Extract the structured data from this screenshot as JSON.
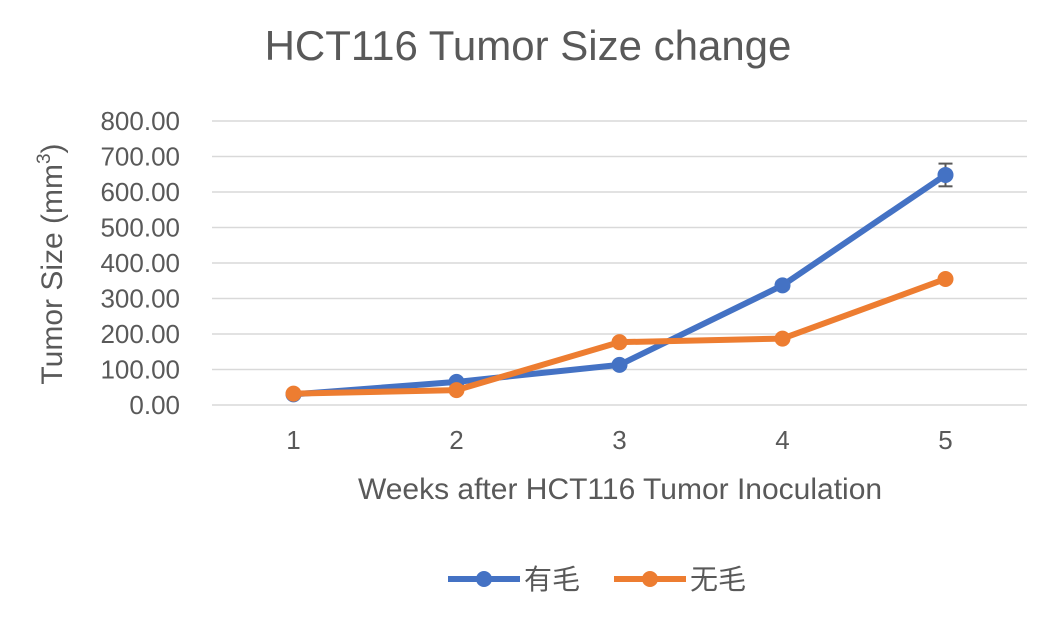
{
  "chart_data": {
    "type": "line",
    "title": "HCT116 Tumor Size change",
    "xlabel": "Weeks after HCT116 Tumor Inoculation",
    "ylabel": "Tumor Size (mm",
    "ylabel_superscript": "3",
    "ylabel_close": ")",
    "categories": [
      "1",
      "2",
      "3",
      "4",
      "5"
    ],
    "ylim": [
      0,
      800
    ],
    "yticks": [
      "0.00",
      "100.00",
      "200.00",
      "300.00",
      "400.00",
      "500.00",
      "600.00",
      "700.00",
      "800.00"
    ],
    "grid": true,
    "legend_position": "bottom",
    "series": [
      {
        "name": "有毛",
        "color": "#4472C4",
        "values": [
          30,
          65,
          113,
          337,
          648
        ],
        "error": [
          0,
          0,
          0,
          10,
          32
        ]
      },
      {
        "name": "无毛",
        "color": "#ED7D31",
        "values": [
          32,
          42,
          177,
          187,
          355
        ],
        "error": [
          0,
          0,
          0,
          0,
          6
        ]
      }
    ]
  }
}
